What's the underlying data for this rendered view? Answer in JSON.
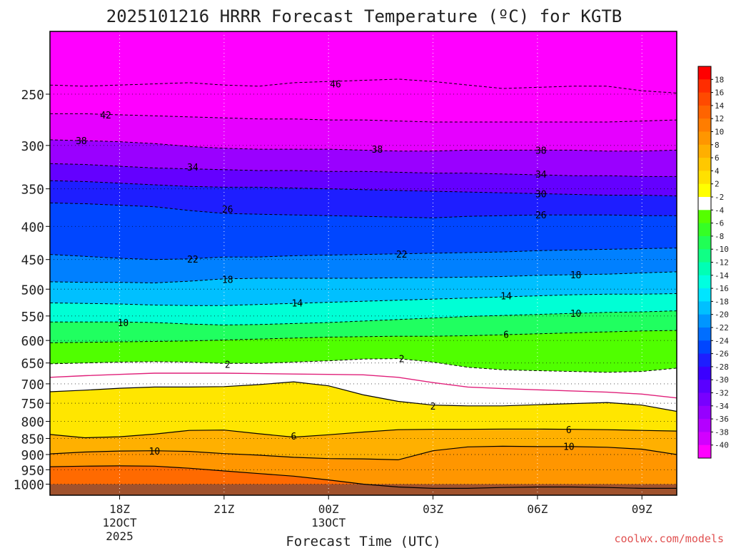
{
  "chart_data": {
    "type": "heatmap",
    "title": "2025101216 HRRR Forecast Temperature (ºC) for KGTB",
    "xlabel": "Forecast Time (UTC)",
    "ylabel": "",
    "credit": "coolwx.com/models",
    "x_ticks": [
      {
        "hour": 18,
        "lines": [
          "18Z",
          "12OCT",
          "2025"
        ]
      },
      {
        "hour": 21,
        "lines": [
          "21Z"
        ]
      },
      {
        "hour": 24,
        "lines": [
          "00Z",
          "13OCT"
        ]
      },
      {
        "hour": 27,
        "lines": [
          "03Z"
        ]
      },
      {
        "hour": 30,
        "lines": [
          "06Z"
        ]
      },
      {
        "hour": 33,
        "lines": [
          "09Z"
        ]
      }
    ],
    "xlim": [
      16,
      34
    ],
    "y_ticks": [
      250,
      300,
      350,
      400,
      450,
      500,
      550,
      600,
      650,
      700,
      750,
      800,
      850,
      900,
      950,
      1000
    ],
    "ylim": [
      200,
      1040
    ],
    "y_scale": "log-pressure",
    "grid": true,
    "surface_color": "#a0522d",
    "surface_pressure": 1000,
    "colorbar_labels": [
      "18",
      "16",
      "14",
      "12",
      "10",
      "8",
      "6",
      "4",
      "2",
      "-2",
      "-4",
      "-6",
      "-8",
      "-10",
      "-12",
      "-14",
      "-16",
      "-18",
      "-20",
      "-22",
      "-24",
      "-26",
      "-28",
      "-30",
      "-32",
      "-34",
      "-36",
      "-38",
      "-40"
    ],
    "colorbar_colors": [
      "#ff0000",
      "#ff2d00",
      "#ff4a00",
      "#ff6400",
      "#ff7d00",
      "#ff9600",
      "#ffaf00",
      "#ffc800",
      "#ffe100",
      "#ffff00",
      "#ffffff",
      "#55ff00",
      "#35ff25",
      "#20ff55",
      "#10ff85",
      "#00ffb5",
      "#00ffe0",
      "#00e5ff",
      "#00c0ff",
      "#0096ff",
      "#006eff",
      "#0046ff",
      "#1e1eff",
      "#3a00ff",
      "#5a00ff",
      "#7800ff",
      "#9600ff",
      "#b400ff",
      "#d200ff",
      "#ff00ff"
    ],
    "temperature_field": [
      {
        "temp": -46,
        "pressure": [
          242,
          243,
          242,
          241,
          240,
          242,
          243,
          240,
          239,
          238,
          237,
          239,
          242,
          245,
          244,
          243,
          243,
          247,
          249
        ]
      },
      {
        "temp": -42,
        "pressure": [
          268,
          268,
          269,
          270,
          271,
          272,
          273,
          273,
          274,
          274,
          275,
          276,
          276,
          276,
          276,
          276,
          276,
          275,
          274
        ]
      },
      {
        "temp": -38,
        "pressure": [
          294,
          295,
          296,
          298,
          301,
          303,
          304,
          304,
          304,
          305,
          306,
          306,
          305,
          305,
          305,
          305,
          306,
          306,
          305
        ]
      },
      {
        "temp": -34,
        "pressure": [
          320,
          321,
          323,
          325,
          326,
          327,
          328,
          328,
          329,
          329,
          330,
          331,
          331,
          332,
          333,
          334,
          334,
          335,
          335
        ]
      },
      {
        "temp": -30,
        "pressure": [
          340,
          341,
          343,
          345,
          347,
          348,
          348,
          349,
          350,
          351,
          352,
          353,
          354,
          355,
          356,
          357,
          358,
          358,
          359
        ]
      },
      {
        "temp": -26,
        "pressure": [
          368,
          369,
          371,
          373,
          378,
          382,
          383,
          384,
          385,
          386,
          387,
          388,
          386,
          385,
          384,
          384,
          384,
          385,
          385
        ]
      },
      {
        "temp": -22,
        "pressure": [
          442,
          445,
          448,
          450,
          449,
          446,
          446,
          444,
          443,
          442,
          441,
          440,
          439,
          438,
          436,
          435,
          434,
          433,
          432
        ]
      },
      {
        "temp": -18,
        "pressure": [
          487,
          488,
          488,
          489,
          486,
          482,
          481,
          481,
          481,
          481,
          480,
          480,
          479,
          478,
          476,
          475,
          474,
          472,
          470
        ]
      },
      {
        "temp": -14,
        "pressure": [
          525,
          526,
          527,
          529,
          530,
          530,
          528,
          526,
          524,
          522,
          520,
          518,
          516,
          514,
          512,
          510,
          509,
          509,
          508
        ]
      },
      {
        "temp": -10,
        "pressure": [
          562,
          562,
          562,
          563,
          566,
          568,
          567,
          565,
          563,
          560,
          557,
          554,
          551,
          549,
          547,
          545,
          543,
          542,
          540
        ]
      },
      {
        "temp": -6,
        "pressure": [
          605,
          604,
          603,
          602,
          601,
          599,
          597,
          595,
          593,
          592,
          591,
          591,
          590,
          588,
          586,
          584,
          582,
          580,
          579
        ]
      },
      {
        "temp": -2,
        "pressure": [
          652,
          650,
          648,
          647,
          648,
          651,
          651,
          648,
          645,
          641,
          640,
          648,
          660,
          666,
          668,
          670,
          672,
          670,
          662
        ]
      },
      {
        "temp": 0,
        "pressure": [
          684,
          680,
          677,
          674,
          674,
          674,
          675,
          676,
          677,
          678,
          684,
          697,
          708,
          712,
          715,
          718,
          721,
          726,
          736
        ]
      },
      {
        "temp": 2,
        "pressure": [
          720,
          716,
          711,
          708,
          708,
          707,
          702,
          695,
          705,
          728,
          745,
          755,
          757,
          757,
          754,
          751,
          748,
          755,
          772
        ]
      },
      {
        "temp": 6,
        "pressure": [
          838,
          848,
          845,
          837,
          826,
          825,
          836,
          846,
          839,
          831,
          824,
          823,
          823,
          822,
          822,
          823,
          824,
          826,
          828
        ]
      },
      {
        "temp": 10,
        "pressure": [
          898,
          892,
          889,
          888,
          890,
          897,
          902,
          909,
          913,
          914,
          917,
          888,
          876,
          874,
          875,
          875,
          877,
          883,
          900
        ]
      },
      {
        "temp": 14,
        "pressure": [
          940,
          938,
          937,
          938,
          945,
          954,
          963,
          972,
          985,
          1000,
          1010,
          1015,
          1015,
          1012,
          1010,
          1010,
          1012,
          1015,
          1015
        ]
      }
    ],
    "contour_labels": [
      {
        "text": "46",
        "hour": 24.2,
        "pressure": 241
      },
      {
        "text": "42",
        "hour": 17.6,
        "pressure": 269
      },
      {
        "text": "38",
        "hour": 16.9,
        "pressure": 295
      },
      {
        "text": "38",
        "hour": 25.4,
        "pressure": 304
      },
      {
        "text": "38",
        "hour": 30.1,
        "pressure": 305
      },
      {
        "text": "34",
        "hour": 20.1,
        "pressure": 324
      },
      {
        "text": "34",
        "hour": 30.1,
        "pressure": 332
      },
      {
        "text": "30",
        "hour": 30.1,
        "pressure": 356
      },
      {
        "text": "26",
        "hour": 21.1,
        "pressure": 376
      },
      {
        "text": "26",
        "hour": 30.1,
        "pressure": 384
      },
      {
        "text": "22",
        "hour": 20.1,
        "pressure": 449
      },
      {
        "text": "22",
        "hour": 26.1,
        "pressure": 441
      },
      {
        "text": "18",
        "hour": 21.1,
        "pressure": 483
      },
      {
        "text": "18",
        "hour": 31.1,
        "pressure": 475
      },
      {
        "text": "14",
        "hour": 23.1,
        "pressure": 525
      },
      {
        "text": "14",
        "hour": 29.1,
        "pressure": 512
      },
      {
        "text": "10",
        "hour": 18.1,
        "pressure": 563
      },
      {
        "text": "10",
        "hour": 31.1,
        "pressure": 545
      },
      {
        "text": "6",
        "hour": 29.1,
        "pressure": 587
      },
      {
        "text": "2",
        "hour": 21.1,
        "pressure": 653
      },
      {
        "text": "2",
        "hour": 26.1,
        "pressure": 640
      },
      {
        "text": "2",
        "hour": 27.0,
        "pressure": 757
      },
      {
        "text": "6",
        "hour": 23.0,
        "pressure": 843
      },
      {
        "text": "6",
        "hour": 30.9,
        "pressure": 824
      },
      {
        "text": "10",
        "hour": 19.0,
        "pressure": 889
      },
      {
        "text": "10",
        "hour": 30.9,
        "pressure": 874
      }
    ]
  }
}
